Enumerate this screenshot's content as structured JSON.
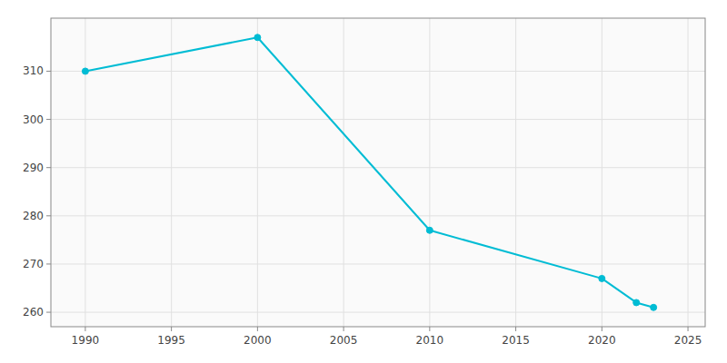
{
  "chart_data": {
    "type": "line",
    "x": [
      1990,
      2000,
      2010,
      2020,
      2022,
      2023
    ],
    "values": [
      310,
      317,
      277,
      267,
      262,
      261
    ],
    "color": "#00bcd4",
    "marker": "circle",
    "xlim": [
      1988,
      2026
    ],
    "ylim": [
      257,
      321
    ],
    "xticks": [
      1990,
      1995,
      2000,
      2005,
      2010,
      2015,
      2020,
      2025
    ],
    "yticks": [
      260,
      270,
      280,
      290,
      300,
      310
    ],
    "grid": true
  }
}
